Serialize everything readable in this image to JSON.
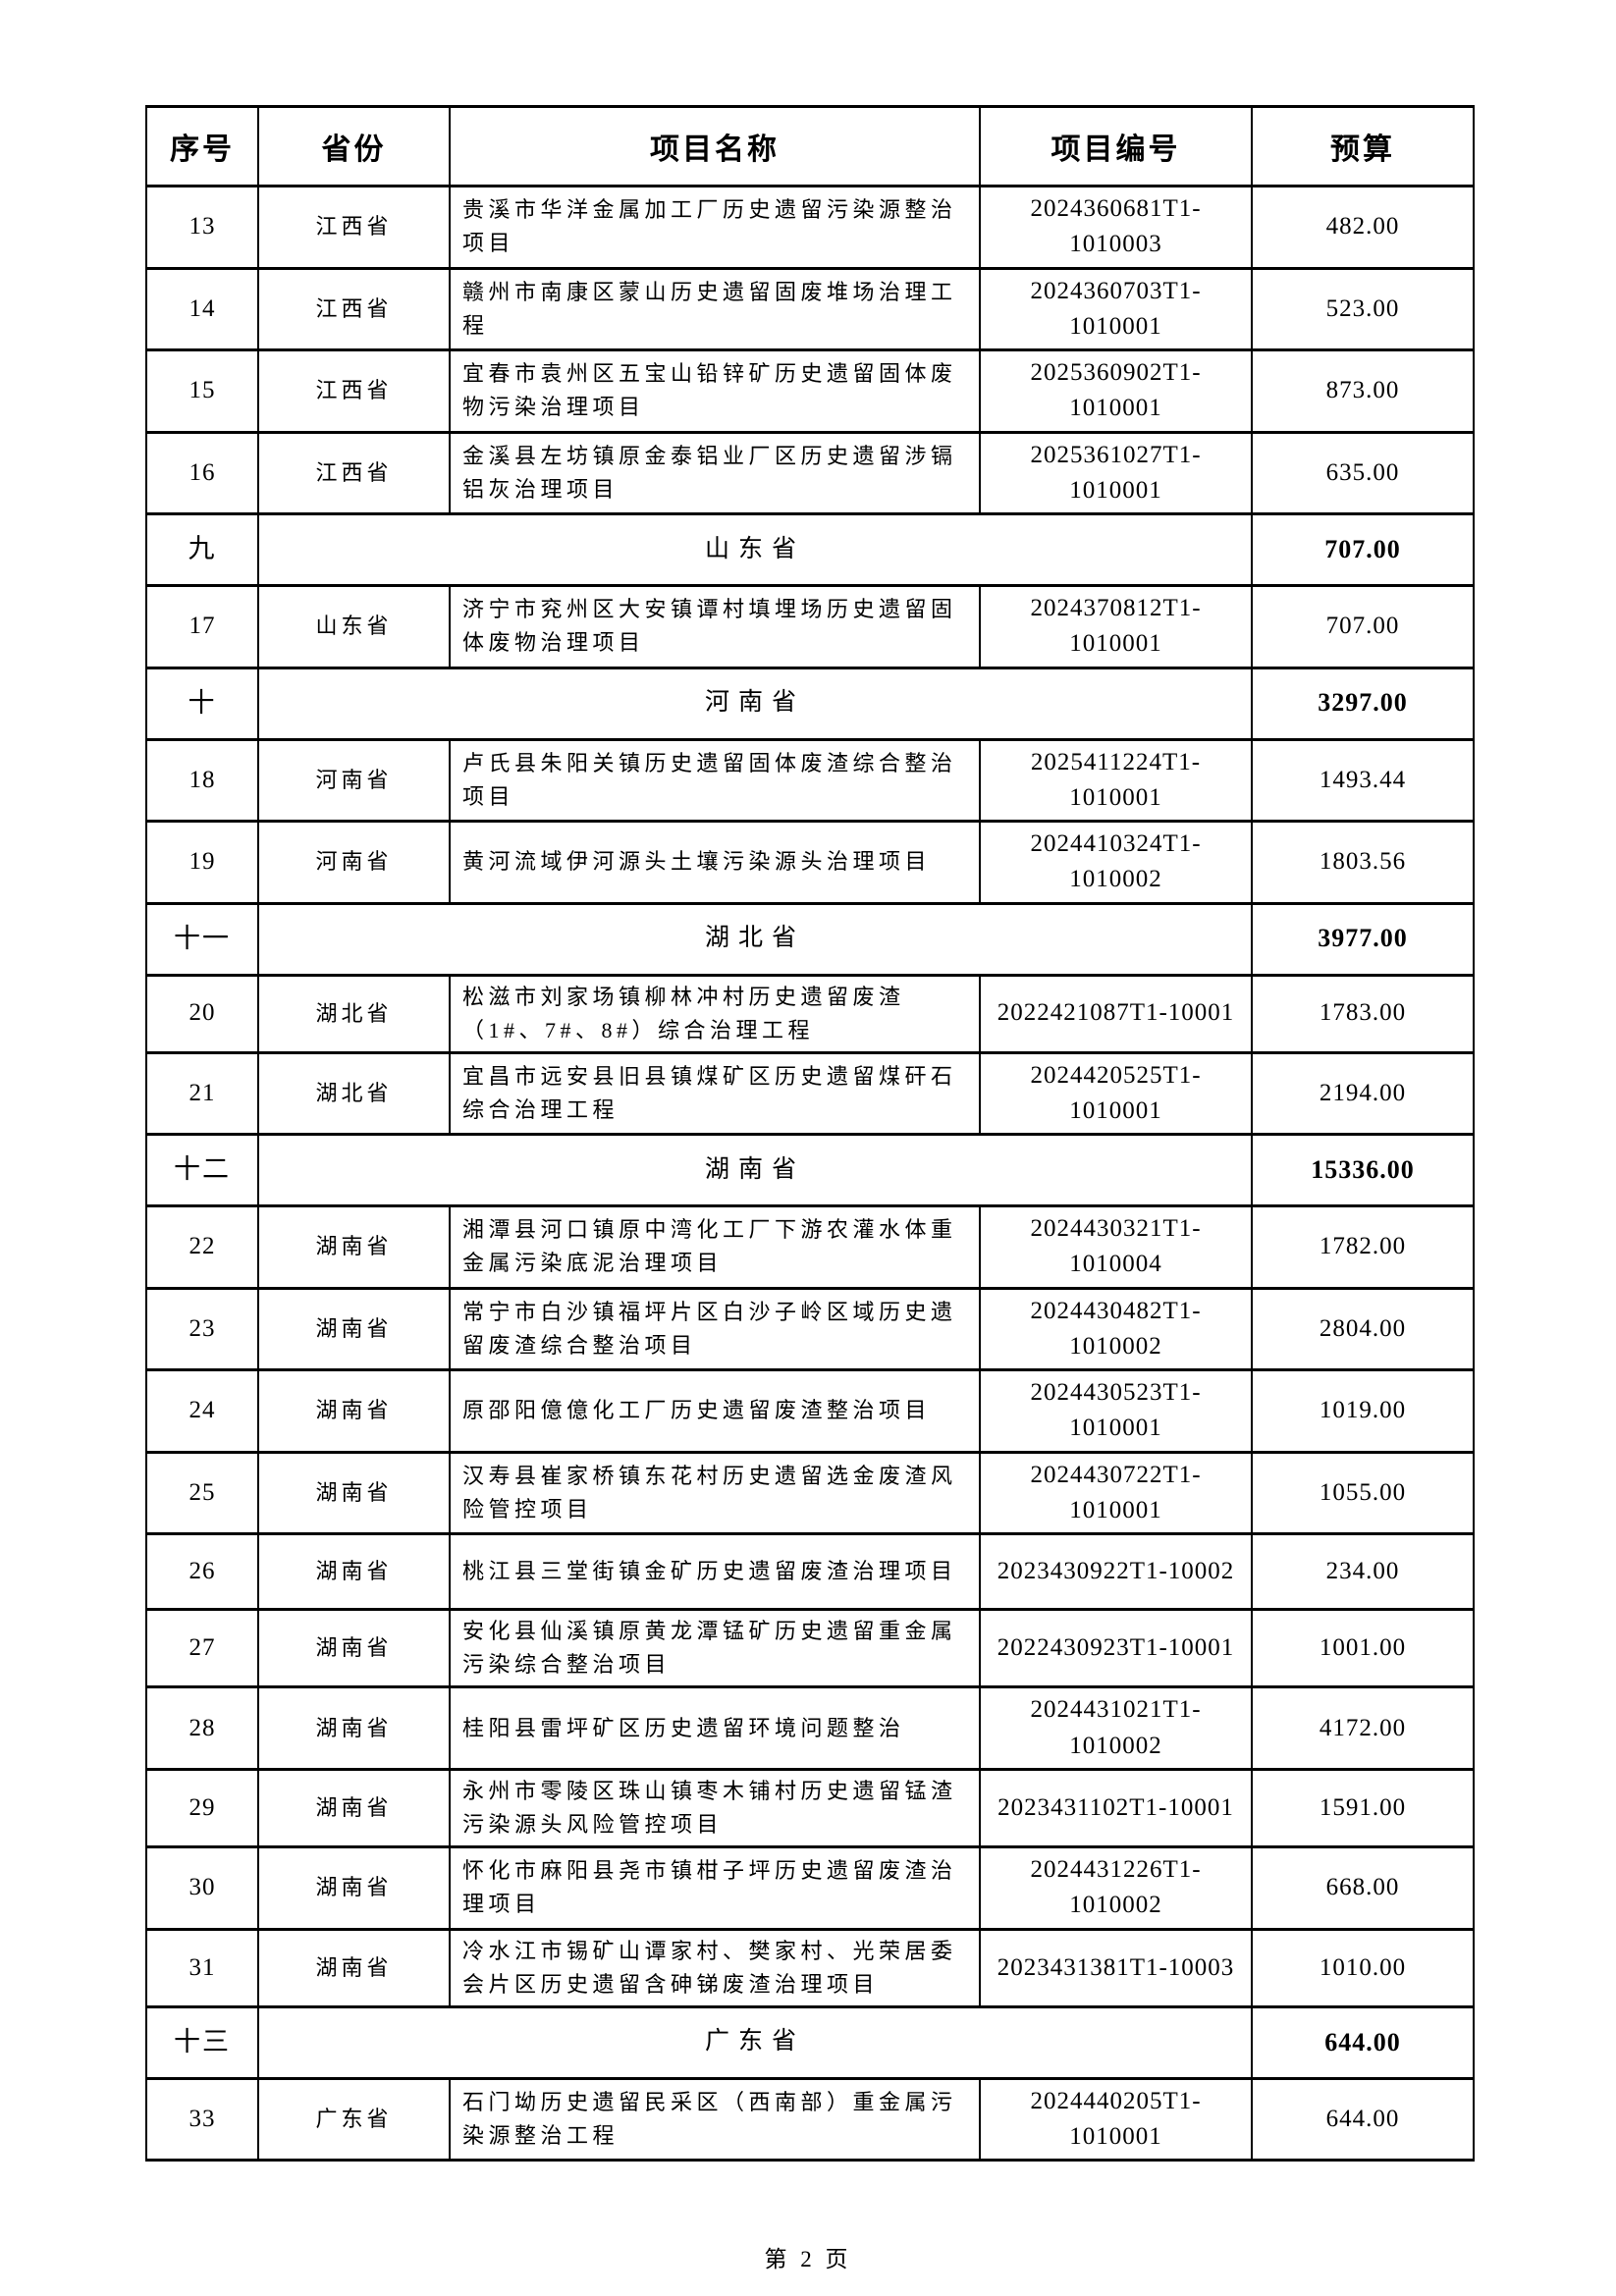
{
  "table": {
    "headers": [
      {
        "key": "no",
        "label": "序号"
      },
      {
        "key": "province",
        "label": "省份"
      },
      {
        "key": "name",
        "label": "项目名称"
      },
      {
        "key": "code",
        "label": "项目编号"
      },
      {
        "key": "budget",
        "label": "预算"
      }
    ],
    "rows": [
      {
        "type": "item",
        "no": "13",
        "province": "江西省",
        "name": "贵溪市华洋金属加工厂历史遗留污染源整治项目",
        "code": "2024360681T1-\n1010003",
        "budget": "482.00"
      },
      {
        "type": "item",
        "no": "14",
        "province": "江西省",
        "name": "赣州市南康区蒙山历史遗留固废堆场治理工程",
        "code": "2024360703T1-\n1010001",
        "budget": "523.00"
      },
      {
        "type": "item",
        "no": "15",
        "province": "江西省",
        "name": "宜春市袁州区五宝山铅锌矿历史遗留固体废物污染治理项目",
        "code": "2025360902T1-\n1010001",
        "budget": "873.00"
      },
      {
        "type": "item",
        "no": "16",
        "province": "江西省",
        "name": "金溪县左坊镇原金泰铝业厂区历史遗留涉镉铝灰治理项目",
        "code": "2025361027T1-\n1010001",
        "budget": "635.00"
      },
      {
        "type": "section",
        "no": "九",
        "province": "山东省",
        "budget": "707.00"
      },
      {
        "type": "item",
        "no": "17",
        "province": "山东省",
        "name": "济宁市兖州区大安镇谭村填埋场历史遗留固体废物治理项目",
        "code": "2024370812T1-\n1010001",
        "budget": "707.00"
      },
      {
        "type": "section",
        "no": "十",
        "province": "河南省",
        "budget": "3297.00"
      },
      {
        "type": "item",
        "no": "18",
        "province": "河南省",
        "name": "卢氏县朱阳关镇历史遗留固体废渣综合整治项目",
        "code": "2025411224T1-\n1010001",
        "budget": "1493.44"
      },
      {
        "type": "item",
        "no": "19",
        "province": "河南省",
        "name": "黄河流域伊河源头土壤污染源头治理项目",
        "code": "2024410324T1-\n1010002",
        "budget": "1803.56"
      },
      {
        "type": "section",
        "no": "十一",
        "province": "湖北省",
        "budget": "3977.00"
      },
      {
        "type": "item",
        "no": "20",
        "province": "湖北省",
        "name": "松滋市刘家场镇柳林冲村历史遗留废渣（1#、7#、8#）综合治理工程",
        "code": "2022421087T1-10001",
        "budget": "1783.00"
      },
      {
        "type": "item",
        "no": "21",
        "province": "湖北省",
        "name": "宜昌市远安县旧县镇煤矿区历史遗留煤矸石综合治理工程",
        "code": "2024420525T1-\n1010001",
        "budget": "2194.00"
      },
      {
        "type": "section",
        "no": "十二",
        "province": "湖南省",
        "budget": "15336.00"
      },
      {
        "type": "item",
        "no": "22",
        "province": "湖南省",
        "name": "湘潭县河口镇原中湾化工厂下游农灌水体重金属污染底泥治理项目",
        "code": "2024430321T1-\n1010004",
        "budget": "1782.00"
      },
      {
        "type": "item",
        "no": "23",
        "province": "湖南省",
        "name": "常宁市白沙镇福坪片区白沙子岭区域历史遗留废渣综合整治项目",
        "code": "2024430482T1-\n1010002",
        "budget": "2804.00"
      },
      {
        "type": "item",
        "no": "24",
        "province": "湖南省",
        "name": "原邵阳億億化工厂历史遗留废渣整治项目",
        "code": "2024430523T1-\n1010001",
        "budget": "1019.00"
      },
      {
        "type": "item",
        "no": "25",
        "province": "湖南省",
        "name": "汉寿县崔家桥镇东花村历史遗留选金废渣风险管控项目",
        "code": "2024430722T1-\n1010001",
        "budget": "1055.00"
      },
      {
        "type": "item",
        "no": "26",
        "province": "湖南省",
        "name": "桃江县三堂街镇金矿历史遗留废渣治理项目",
        "code": "2023430922T1-10002",
        "budget": "234.00"
      },
      {
        "type": "item",
        "no": "27",
        "province": "湖南省",
        "name": "安化县仙溪镇原黄龙潭锰矿历史遗留重金属污染综合整治项目",
        "code": "2022430923T1-10001",
        "budget": "1001.00"
      },
      {
        "type": "item",
        "no": "28",
        "province": "湖南省",
        "name": "桂阳县雷坪矿区历史遗留环境问题整治",
        "code": "2024431021T1-\n1010002",
        "budget": "4172.00"
      },
      {
        "type": "item",
        "no": "29",
        "province": "湖南省",
        "name": "永州市零陵区珠山镇枣木铺村历史遗留锰渣污染源头风险管控项目",
        "code": "2023431102T1-10001",
        "budget": "1591.00"
      },
      {
        "type": "item",
        "no": "30",
        "province": "湖南省",
        "name": "怀化市麻阳县尧市镇柑子坪历史遗留废渣治理项目",
        "code": "2024431226T1-\n1010002",
        "budget": "668.00"
      },
      {
        "type": "item",
        "no": "31",
        "province": "湖南省",
        "name": "冷水江市锡矿山谭家村、樊家村、光荣居委会片区历史遗留含砷锑废渣治理项目",
        "code": "2023431381T1-10003",
        "budget": "1010.00"
      },
      {
        "type": "section",
        "no": "十三",
        "province": "广东省",
        "budget": "644.00"
      },
      {
        "type": "item",
        "no": "33",
        "province": "广东省",
        "name": "石门坳历史遗留民采区（西南部）重金属污染源整治工程",
        "code": "2024440205T1-\n1010001",
        "budget": "644.00"
      }
    ]
  },
  "footer": {
    "page_label": "第 2 页"
  }
}
